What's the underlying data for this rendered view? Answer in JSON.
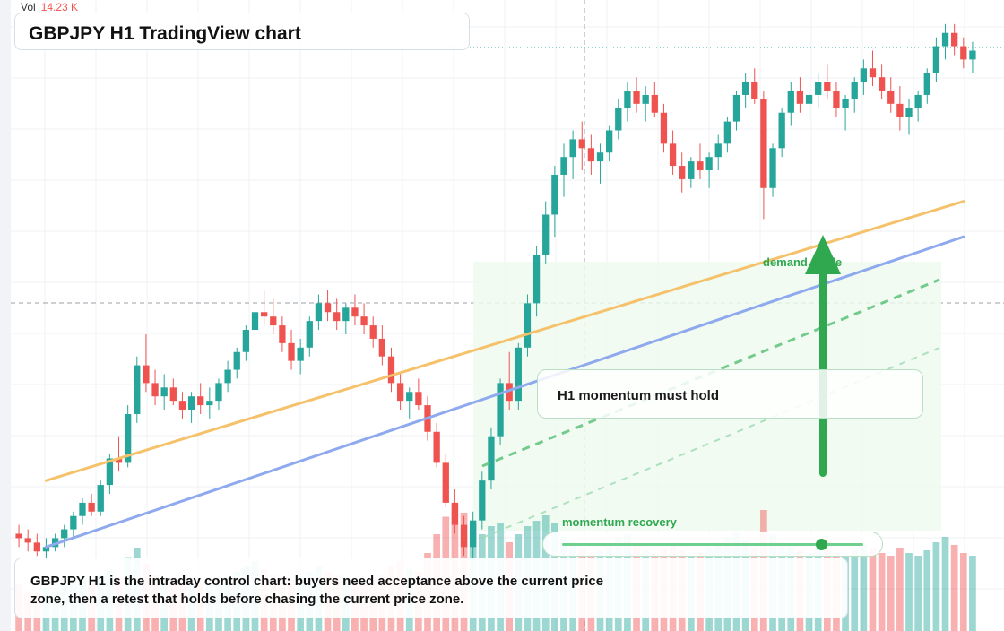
{
  "title": "GBPJPY H1 TradingView chart",
  "volume_label": "Vol",
  "volume_value": "14.23 K",
  "annotations": {
    "momentum_hold": "H1 momentum must hold",
    "demand_label": "demand guide",
    "momentum_recovery": "momentum recovery"
  },
  "caption_lines": [
    "GBPJPY H1 is the intraday control chart: buyers need acceptance above the current price",
    "zone, then a retest that holds before chasing the current price zone."
  ],
  "colors": {
    "up": "#26a69a",
    "down": "#ef5350",
    "trend_orange": "#f5c26b",
    "trend_blue": "#8fa9ee",
    "accent_green": "#2fa84f",
    "zone_fill": "#eefaef"
  },
  "chart_data": {
    "type": "candlestick",
    "symbol": "GBPJPY",
    "timeframe": "H1",
    "price_axis_visible": false,
    "time_axis_visible": false,
    "candles": [
      [
        202.4,
        202.6,
        202.1,
        202.3
      ],
      [
        202.3,
        202.5,
        202.0,
        202.2
      ],
      [
        202.2,
        202.4,
        201.9,
        202.0
      ],
      [
        202.0,
        202.3,
        201.8,
        202.1
      ],
      [
        202.1,
        202.4,
        202.0,
        202.3
      ],
      [
        202.3,
        202.6,
        202.1,
        202.5
      ],
      [
        202.5,
        202.9,
        202.3,
        202.8
      ],
      [
        202.8,
        203.2,
        202.6,
        203.1
      ],
      [
        203.1,
        203.3,
        202.8,
        202.9
      ],
      [
        202.9,
        203.6,
        202.8,
        203.5
      ],
      [
        203.5,
        204.2,
        203.3,
        204.1
      ],
      [
        204.1,
        204.6,
        203.8,
        204.0
      ],
      [
        204.0,
        205.3,
        203.9,
        205.1
      ],
      [
        205.1,
        206.4,
        204.9,
        206.2
      ],
      [
        206.2,
        206.9,
        205.6,
        205.8
      ],
      [
        205.8,
        206.1,
        205.3,
        205.5
      ],
      [
        205.5,
        206.0,
        205.2,
        205.7
      ],
      [
        205.7,
        205.9,
        205.3,
        205.4
      ],
      [
        205.4,
        205.6,
        205.0,
        205.2
      ],
      [
        205.2,
        205.6,
        204.9,
        205.5
      ],
      [
        205.5,
        205.8,
        205.1,
        205.3
      ],
      [
        205.3,
        205.7,
        205.0,
        205.4
      ],
      [
        205.4,
        205.9,
        205.2,
        205.8
      ],
      [
        205.8,
        206.3,
        205.6,
        206.1
      ],
      [
        206.1,
        206.6,
        205.9,
        206.5
      ],
      [
        206.5,
        207.1,
        206.3,
        207.0
      ],
      [
        207.0,
        207.6,
        206.8,
        207.4
      ],
      [
        207.4,
        207.9,
        207.1,
        207.3
      ],
      [
        207.3,
        207.7,
        206.9,
        207.1
      ],
      [
        207.1,
        207.3,
        206.5,
        206.7
      ],
      [
        206.7,
        207.0,
        206.1,
        206.3
      ],
      [
        206.3,
        206.8,
        206.0,
        206.6
      ],
      [
        206.6,
        207.3,
        206.4,
        207.2
      ],
      [
        207.2,
        207.8,
        207.0,
        207.6
      ],
      [
        207.6,
        207.9,
        207.2,
        207.4
      ],
      [
        207.4,
        207.7,
        207.0,
        207.2
      ],
      [
        207.2,
        207.6,
        206.9,
        207.5
      ],
      [
        207.5,
        207.8,
        207.1,
        207.3
      ],
      [
        207.3,
        207.6,
        206.9,
        207.1
      ],
      [
        207.1,
        207.3,
        206.6,
        206.8
      ],
      [
        206.8,
        207.1,
        206.2,
        206.4
      ],
      [
        206.4,
        206.6,
        205.6,
        205.8
      ],
      [
        205.8,
        206.0,
        205.2,
        205.4
      ],
      [
        205.4,
        205.7,
        205.0,
        205.6
      ],
      [
        205.6,
        205.9,
        205.2,
        205.3
      ],
      [
        205.3,
        205.5,
        204.5,
        204.7
      ],
      [
        204.7,
        204.9,
        203.9,
        204.0
      ],
      [
        204.0,
        204.2,
        203.0,
        203.1
      ],
      [
        203.1,
        203.4,
        202.4,
        202.6
      ],
      [
        202.6,
        202.8,
        201.9,
        202.1
      ],
      [
        202.1,
        202.9,
        201.8,
        202.7
      ],
      [
        202.7,
        203.8,
        202.5,
        203.6
      ],
      [
        203.6,
        204.8,
        203.4,
        204.6
      ],
      [
        204.6,
        205.9,
        204.4,
        205.8
      ],
      [
        205.8,
        206.5,
        205.2,
        205.4
      ],
      [
        205.4,
        206.7,
        205.2,
        206.6
      ],
      [
        206.6,
        207.8,
        206.4,
        207.6
      ],
      [
        207.6,
        208.9,
        207.3,
        208.7
      ],
      [
        208.7,
        209.9,
        208.5,
        209.6
      ],
      [
        209.6,
        210.7,
        209.1,
        210.5
      ],
      [
        210.5,
        211.2,
        210.0,
        210.9
      ],
      [
        210.9,
        211.5,
        210.4,
        211.3
      ],
      [
        211.3,
        211.7,
        210.6,
        211.1
      ],
      [
        211.1,
        211.4,
        210.5,
        210.8
      ],
      [
        210.8,
        211.2,
        210.3,
        211.0
      ],
      [
        211.0,
        211.6,
        210.8,
        211.5
      ],
      [
        211.5,
        212.2,
        211.3,
        212.0
      ],
      [
        212.0,
        212.6,
        211.7,
        212.4
      ],
      [
        212.4,
        212.7,
        211.9,
        212.1
      ],
      [
        212.1,
        212.5,
        211.7,
        212.3
      ],
      [
        212.3,
        212.6,
        211.8,
        211.9
      ],
      [
        211.9,
        212.1,
        211.0,
        211.2
      ],
      [
        211.2,
        211.5,
        210.5,
        210.7
      ],
      [
        210.7,
        211.0,
        210.1,
        210.4
      ],
      [
        210.4,
        210.9,
        210.2,
        210.8
      ],
      [
        210.8,
        211.2,
        210.4,
        210.6
      ],
      [
        210.6,
        211.0,
        210.2,
        210.9
      ],
      [
        210.9,
        211.4,
        210.6,
        211.2
      ],
      [
        211.2,
        211.8,
        211.0,
        211.7
      ],
      [
        211.7,
        212.4,
        211.5,
        212.3
      ],
      [
        212.3,
        212.8,
        212.0,
        212.6
      ],
      [
        212.6,
        212.9,
        212.1,
        212.2
      ],
      [
        212.2,
        212.4,
        209.5,
        210.2
      ],
      [
        210.2,
        211.2,
        210.0,
        211.1
      ],
      [
        211.1,
        212.0,
        210.9,
        211.9
      ],
      [
        211.9,
        212.6,
        211.6,
        212.4
      ],
      [
        212.4,
        212.7,
        211.9,
        212.1
      ],
      [
        212.1,
        212.5,
        211.7,
        212.3
      ],
      [
        212.3,
        212.8,
        212.0,
        212.6
      ],
      [
        212.6,
        213.0,
        212.2,
        212.4
      ],
      [
        212.4,
        212.6,
        211.8,
        212.0
      ],
      [
        212.0,
        212.3,
        211.5,
        212.2
      ],
      [
        212.2,
        212.7,
        211.9,
        212.6
      ],
      [
        212.6,
        213.1,
        212.3,
        212.9
      ],
      [
        212.9,
        213.3,
        212.5,
        212.7
      ],
      [
        212.7,
        213.0,
        212.2,
        212.4
      ],
      [
        212.4,
        212.7,
        211.9,
        212.1
      ],
      [
        212.1,
        212.5,
        211.5,
        211.8
      ],
      [
        211.8,
        212.2,
        211.4,
        212.0
      ],
      [
        212.0,
        212.4,
        211.7,
        212.3
      ],
      [
        212.3,
        212.9,
        212.1,
        212.8
      ],
      [
        212.8,
        213.6,
        212.6,
        213.4
      ],
      [
        213.4,
        213.9,
        213.1,
        213.7
      ],
      [
        213.7,
        213.9,
        213.2,
        213.4
      ],
      [
        213.4,
        213.6,
        212.9,
        213.1
      ],
      [
        213.1,
        213.5,
        212.8,
        213.3
      ]
    ],
    "volume": [
      0.35,
      0.3,
      0.28,
      0.32,
      0.3,
      0.34,
      0.38,
      0.4,
      0.36,
      0.42,
      0.45,
      0.4,
      0.55,
      0.62,
      0.5,
      0.42,
      0.38,
      0.4,
      0.36,
      0.34,
      0.36,
      0.34,
      0.38,
      0.4,
      0.44,
      0.48,
      0.52,
      0.46,
      0.42,
      0.4,
      0.38,
      0.4,
      0.44,
      0.48,
      0.44,
      0.42,
      0.4,
      0.38,
      0.36,
      0.38,
      0.42,
      0.48,
      0.52,
      0.46,
      0.44,
      0.58,
      0.72,
      0.85,
      0.95,
      0.88,
      0.8,
      0.72,
      0.78,
      0.8,
      0.66,
      0.72,
      0.78,
      0.82,
      0.86,
      0.8,
      0.7,
      0.66,
      0.62,
      0.58,
      0.6,
      0.64,
      0.7,
      0.72,
      0.64,
      0.6,
      0.58,
      0.62,
      0.66,
      0.6,
      0.56,
      0.58,
      0.62,
      0.66,
      0.7,
      0.74,
      0.68,
      0.62,
      0.9,
      0.72,
      0.66,
      0.64,
      0.6,
      0.58,
      0.62,
      0.6,
      0.58,
      0.56,
      0.6,
      0.64,
      0.62,
      0.58,
      0.56,
      0.62,
      0.58,
      0.56,
      0.6,
      0.66,
      0.7,
      0.64,
      0.58,
      0.56
    ],
    "trend_lines": [
      {
        "color": "orange",
        "from": [
          3,
          203.6
        ],
        "to": [
          104,
          209.9
        ]
      },
      {
        "color": "blue",
        "from": [
          3,
          202.1
        ],
        "to": [
          104,
          209.1
        ]
      }
    ],
    "guide_arrow": {
      "direction": "up",
      "label": "demand guide"
    },
    "momentum_recovery_level": 0.86
  }
}
